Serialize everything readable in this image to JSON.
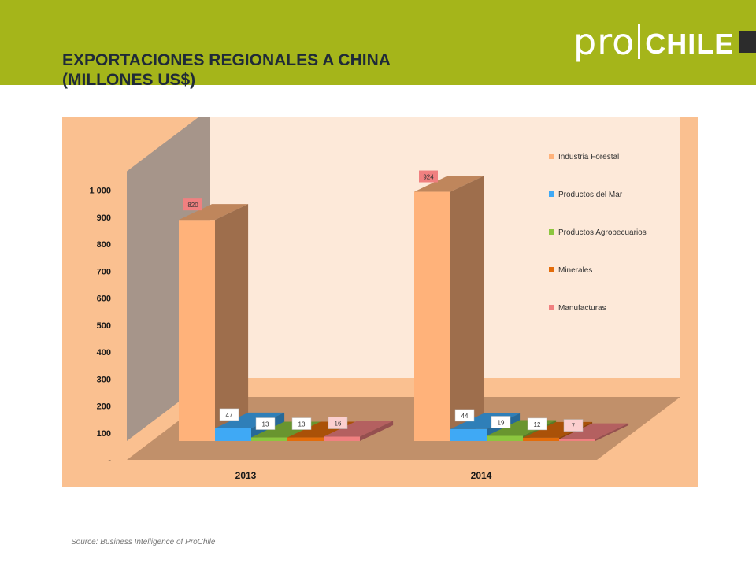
{
  "header": {
    "title_line1": "EXPORTACIONES REGIONALES  A CHINA",
    "title_line2": "(MILLONES US$)",
    "logo_pro": "pro",
    "logo_chile": "CHILE",
    "bar_color": "#a5b51a"
  },
  "chart_data": {
    "type": "bar",
    "categories": [
      "2013",
      "2014"
    ],
    "series": [
      {
        "name": "Industria Forestal",
        "values": [
          820,
          924
        ],
        "color": "#ffb27a"
      },
      {
        "name": "Productos del Mar",
        "values": [
          47,
          44
        ],
        "color": "#3fa9f5"
      },
      {
        "name": "Productos Agropecuarios",
        "values": [
          13,
          19
        ],
        "color": "#8cc63f"
      },
      {
        "name": "Minerales",
        "values": [
          13,
          12
        ],
        "color": "#e36c0a"
      },
      {
        "name": "Manufacturas",
        "values": [
          16,
          7
        ],
        "color": "#f08080"
      }
    ],
    "ylim": [
      0,
      1000
    ],
    "yticks": [
      {
        "value": 0,
        "label": "-"
      },
      {
        "value": 100,
        "label": "100"
      },
      {
        "value": 200,
        "label": "200"
      },
      {
        "value": 300,
        "label": "300"
      },
      {
        "value": 400,
        "label": "400"
      },
      {
        "value": 500,
        "label": "500"
      },
      {
        "value": 600,
        "label": "600"
      },
      {
        "value": 700,
        "label": "700"
      },
      {
        "value": 800,
        "label": "800"
      },
      {
        "value": 900,
        "label": "900"
      },
      {
        "value": 1000,
        "label": "1 000"
      }
    ],
    "legend_position": "right",
    "three_d": true,
    "grid": false,
    "title": "",
    "xlabel": "",
    "ylabel": ""
  },
  "footer": {
    "source": "Source: Business  Intelligence  of ProChile"
  }
}
